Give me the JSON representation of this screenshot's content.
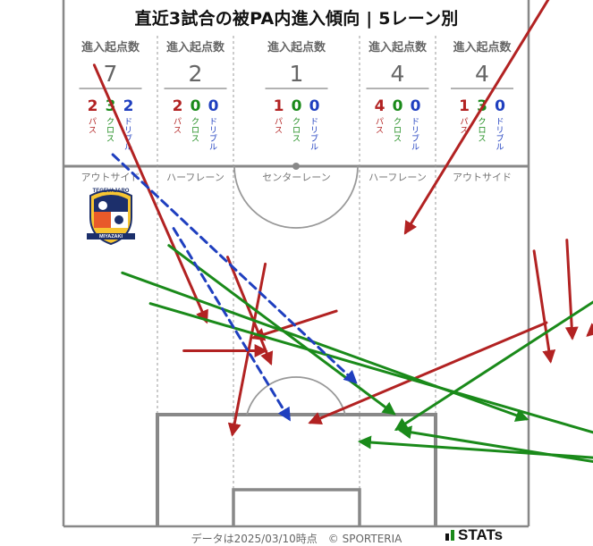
{
  "title": "直近3試合の被PA内進入傾向 | 5レーン別",
  "footer": "データは2025/03/10時点　© SPORTERIA",
  "brand": "STATs",
  "logo": {
    "top": "TEGEVAJARO",
    "bottom": "MIYAZAKI"
  },
  "colors": {
    "pass": "#b22222",
    "cross": "#1a8a1a",
    "dribble": "#1f3fbf"
  },
  "chart_data": {
    "type": "pitch-arrows",
    "header_label": "進入起点数",
    "type_labels": {
      "pass": "パス",
      "cross": "クロス",
      "dribble": "ドリブル"
    },
    "lanes": [
      {
        "name": "アウトサイド",
        "total": "7",
        "pass": "2",
        "cross": "3",
        "dribble": "2"
      },
      {
        "name": "ハーフレーン",
        "total": "2",
        "pass": "2",
        "cross": "0",
        "dribble": "0"
      },
      {
        "name": "センターレーン",
        "total": "1",
        "pass": "1",
        "cross": "0",
        "dribble": "0"
      },
      {
        "name": "ハーフレーン",
        "total": "4",
        "pass": "4",
        "cross": "0",
        "dribble": "0"
      },
      {
        "name": "アウトサイド",
        "total": "4",
        "pass": "1",
        "cross": "3",
        "dribble": "0"
      }
    ],
    "arrows": [
      {
        "type": "pass",
        "from": [
          4.5,
          67.5
        ],
        "to": [
          20.9,
          30.0
        ]
      },
      {
        "type": "pass",
        "from": [
          29.5,
          38.4
        ],
        "to": [
          24.7,
          13.5
        ]
      },
      {
        "type": "pass",
        "from": [
          24.0,
          39.4
        ],
        "to": [
          30.3,
          23.9
        ]
      },
      {
        "type": "pass",
        "from": [
          39.9,
          31.5
        ],
        "to": [
          27.8,
          27.6
        ]
      },
      {
        "type": "pass",
        "from": [
          17.6,
          25.7
        ],
        "to": [
          29.5,
          25.7
        ]
      },
      {
        "type": "pass",
        "from": [
          76.7,
          86.6
        ],
        "to": [
          50.0,
          43.0
        ]
      },
      {
        "type": "pass",
        "from": [
          70.6,
          29.8
        ],
        "to": [
          36.1,
          15.2
        ]
      },
      {
        "type": "pass",
        "from": [
          68.8,
          40.3
        ],
        "to": [
          71.2,
          24.2
        ]
      },
      {
        "type": "pass",
        "from": [
          73.6,
          41.9
        ],
        "to": [
          74.4,
          27.6
        ]
      },
      {
        "type": "pass",
        "from": [
          82.5,
          33.1
        ],
        "to": [
          76.7,
          28.0
        ]
      },
      {
        "type": "cross",
        "from": [
          8.6,
          37.1
        ],
        "to": [
          67.7,
          15.7
        ]
      },
      {
        "type": "cross",
        "from": [
          12.7,
          32.6
        ],
        "to": [
          96.5,
          8.2
        ]
      },
      {
        "type": "cross",
        "from": [
          15.4,
          41.1
        ],
        "to": [
          48.3,
          16.5
        ]
      },
      {
        "type": "cross",
        "from": [
          84.5,
          37.4
        ],
        "to": [
          48.7,
          14.2
        ]
      },
      {
        "type": "cross",
        "from": [
          94.2,
          8.9
        ],
        "to": [
          43.4,
          12.4
        ]
      },
      {
        "type": "cross",
        "from": [
          95.9,
          6.5
        ],
        "to": [
          49.3,
          14.0
        ]
      },
      {
        "type": "dribble",
        "from": [
          7.2,
          54.4
        ],
        "to": [
          42.7,
          21.1
        ]
      },
      {
        "type": "dribble",
        "from": [
          16.1,
          43.6
        ],
        "to": [
          33.0,
          15.7
        ]
      }
    ]
  }
}
